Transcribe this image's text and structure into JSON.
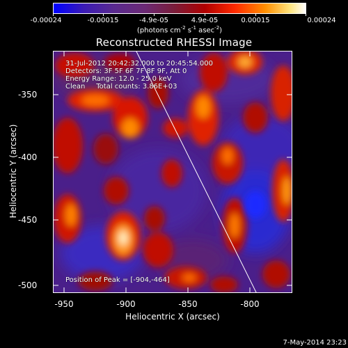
{
  "colorbar": {
    "ticks": [
      "-0.00024",
      "-0.00015",
      "-4.9e-05",
      "4.9e-05",
      "0.00015",
      "0.00024"
    ],
    "units_main": "(photons cm",
    "units_exp1": "-2",
    "units_mid": " s",
    "units_exp2": "-1",
    "units_mid2": " asec",
    "units_exp3": "-2",
    "units_end": ")"
  },
  "title": "Reconstructed RHESSI Image",
  "info": {
    "time": "31-Jul-2012 20:42:32.000 to 20:45:54.000",
    "detectors": "Detectors: 3F 5F 6F 7F 8F 9F, Att 0",
    "energy": "Energy Range: 12.0 - 25.0 keV",
    "method": "Clean     Total counts: 3.86E+03",
    "peak": "Position of Peak = [-904,-464]"
  },
  "axes": {
    "xlabel": "Heliocentric X (arcsec)",
    "ylabel": "Heliocentric Y (arcsec)",
    "x_ticks": [
      "-950",
      "-900",
      "-850",
      "-800"
    ],
    "y_ticks": [
      "-350",
      "-400",
      "-450",
      "-500"
    ]
  },
  "footer": "7-May-2014 23:23"
}
